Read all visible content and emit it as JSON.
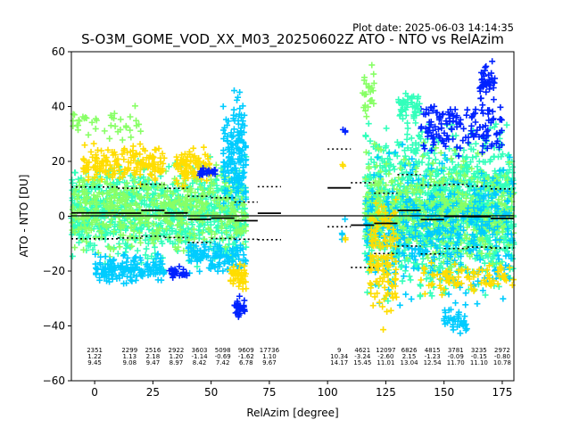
{
  "plot_date": "Plot date: 2025-06-03 14:14:35",
  "chart_data": {
    "type": "scatter",
    "title": "S-O3M_GOME_VOD_XX_M03_20250602Z ATO - NTO vs RelAzim",
    "xlabel": "RelAzim [degree]",
    "ylabel": "ATO - NTO [DU]",
    "xlim": [
      -10,
      180
    ],
    "ylim": [
      -60,
      60
    ],
    "x_ticks": [
      0,
      25,
      50,
      75,
      100,
      125,
      150,
      175
    ],
    "y_ticks": [
      -60,
      -40,
      -20,
      0,
      20,
      40,
      60
    ],
    "zero_line": 0,
    "grid": false,
    "colors": {
      "low": "#0022ff",
      "mid_low": "#00ccff",
      "mid": "#33ffbb",
      "mid_high": "#88ff66",
      "high": "#ffdd00",
      "axis": "#000000"
    },
    "bins": [
      {
        "x_start": -10,
        "x_end": 10,
        "count": "2351",
        "mean": "1.22",
        "std": "9.45"
      },
      {
        "x_start": 10,
        "x_end": 20,
        "count": "2299",
        "mean": "1.13",
        "std": "9.08"
      },
      {
        "x_start": 20,
        "x_end": 30,
        "count": "2516",
        "mean": "2.18",
        "std": "9.47"
      },
      {
        "x_start": 30,
        "x_end": 40,
        "count": "2922",
        "mean": "1.20",
        "std": "8.97"
      },
      {
        "x_start": 40,
        "x_end": 50,
        "count": "3603",
        "mean": "-1.14",
        "std": "8.42"
      },
      {
        "x_start": 50,
        "x_end": 60,
        "count": "5098",
        "mean": "-0.69",
        "std": "7.42"
      },
      {
        "x_start": 60,
        "x_end": 70,
        "count": "9609",
        "mean": "-1.62",
        "std": "6.78"
      },
      {
        "x_start": 70,
        "x_end": 80,
        "count": "17736",
        "mean": "1.10",
        "std": "9.67"
      },
      {
        "x_start": 100,
        "x_end": 110,
        "count": "9",
        "mean": "10.34",
        "std": "14.17"
      },
      {
        "x_start": 110,
        "x_end": 120,
        "count": "4621",
        "mean": "-3.24",
        "std": "15.45"
      },
      {
        "x_start": 120,
        "x_end": 130,
        "count": "12097",
        "mean": "-2.60",
        "std": "11.01"
      },
      {
        "x_start": 130,
        "x_end": 140,
        "count": "6826",
        "mean": "2.15",
        "std": "13.04"
      },
      {
        "x_start": 140,
        "x_end": 150,
        "count": "4815",
        "mean": "-1.23",
        "std": "12.54"
      },
      {
        "x_start": 150,
        "x_end": 160,
        "count": "3781",
        "mean": "-0.09",
        "std": "11.70"
      },
      {
        "x_start": 160,
        "x_end": 170,
        "count": "3235",
        "mean": "-0.15",
        "std": "11.10"
      },
      {
        "x_start": 170,
        "x_end": 180,
        "count": "2972",
        "mean": "-0.80",
        "std": "10.78"
      }
    ],
    "point_clusters": [
      {
        "color_key": "mid",
        "x_range": [
          -10,
          65
        ],
        "y_range": [
          -22,
          25
        ],
        "n": 900
      },
      {
        "color_key": "mid_high",
        "x_range": [
          -10,
          65
        ],
        "y_range": [
          -18,
          22
        ],
        "n": 500
      },
      {
        "color_key": "high",
        "x_range": [
          -5,
          30
        ],
        "y_range": [
          10,
          28
        ],
        "n": 160
      },
      {
        "color_key": "high",
        "x_range": [
          35,
          50
        ],
        "y_range": [
          10,
          26
        ],
        "n": 90
      },
      {
        "color_key": "mid_low",
        "x_range": [
          0,
          30
        ],
        "y_range": [
          -26,
          -12
        ],
        "n": 160
      },
      {
        "color_key": "mid_low",
        "x_range": [
          40,
          65
        ],
        "y_range": [
          -22,
          -8
        ],
        "n": 120
      },
      {
        "color_key": "low",
        "x_range": [
          32,
          40
        ],
        "y_range": [
          -24,
          -18
        ],
        "n": 30
      },
      {
        "color_key": "low",
        "x_range": [
          45,
          52
        ],
        "y_range": [
          14,
          18
        ],
        "n": 25
      },
      {
        "color_key": "mid_low",
        "x_range": [
          55,
          65
        ],
        "y_range": [
          -5,
          50
        ],
        "n": 160
      },
      {
        "color_key": "low",
        "x_range": [
          60,
          65
        ],
        "y_range": [
          -38,
          -28
        ],
        "n": 30
      },
      {
        "color_key": "high",
        "x_range": [
          58,
          65
        ],
        "y_range": [
          -30,
          -15
        ],
        "n": 40
      },
      {
        "color_key": "mid_high",
        "x_range": [
          -10,
          20
        ],
        "y_range": [
          25,
          42
        ],
        "n": 40
      },
      {
        "color_key": "mid",
        "x_range": [
          116,
          180
        ],
        "y_range": [
          -35,
          40
        ],
        "n": 1300
      },
      {
        "color_key": "mid_high",
        "x_range": [
          116,
          180
        ],
        "y_range": [
          -25,
          30
        ],
        "n": 500
      },
      {
        "color_key": "mid_low",
        "x_range": [
          116,
          180
        ],
        "y_range": [
          -40,
          30
        ],
        "n": 400
      },
      {
        "color_key": "high",
        "x_range": [
          118,
          130
        ],
        "y_range": [
          -45,
          15
        ],
        "n": 130
      },
      {
        "color_key": "high",
        "x_range": [
          140,
          180
        ],
        "y_range": [
          -30,
          -15
        ],
        "n": 90
      },
      {
        "color_key": "low",
        "x_range": [
          140,
          175
        ],
        "y_range": [
          20,
          45
        ],
        "n": 140
      },
      {
        "color_key": "low",
        "x_range": [
          165,
          172
        ],
        "y_range": [
          40,
          58
        ],
        "n": 40
      },
      {
        "color_key": "mid_low",
        "x_range": [
          150,
          160
        ],
        "y_range": [
          -45,
          -30
        ],
        "n": 40
      },
      {
        "color_key": "mid_high",
        "x_range": [
          115,
          120
        ],
        "y_range": [
          30,
          58
        ],
        "n": 25
      },
      {
        "color_key": "mid",
        "x_range": [
          130,
          140
        ],
        "y_range": [
          30,
          48
        ],
        "n": 50
      },
      {
        "color_key": "low",
        "x_range": [
          105,
          108
        ],
        "y_range": [
          25,
          36
        ],
        "n": 3
      },
      {
        "color_key": "mid_low",
        "x_range": [
          106,
          108
        ],
        "y_range": [
          -16,
          0
        ],
        "n": 4
      },
      {
        "color_key": "high",
        "x_range": [
          106,
          108
        ],
        "y_range": [
          -9,
          -7
        ],
        "n": 2
      },
      {
        "color_key": "high",
        "x_range": [
          106,
          108
        ],
        "y_range": [
          18,
          20
        ],
        "n": 2
      }
    ]
  }
}
